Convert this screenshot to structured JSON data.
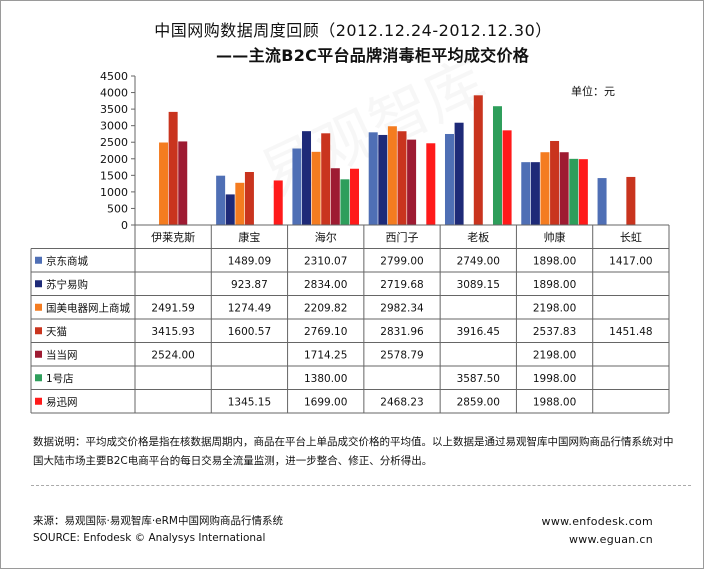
{
  "title": "中国网购数据周度回顾（2012.12.24-2012.12.30）",
  "subtitle": "——主流B2C平台品牌消毒柜平均成交价格",
  "unit": "单位：元",
  "watermark": "易观智库",
  "note": "数据说明：平均成交价格是指在核数据周期内，商品在平台上单品成交价格的平均值。以上数据是通过易观智库中国网购商品行情系统对中国大陆市场主要B2C电商平台的每日交易全流量监测，进一步整合、修正、分析得出。",
  "source_cn": "来源：易观国际·易观智库·eRM中国网购商品行情系统",
  "source_en": "SOURCE: Enfodesk © Analysys International",
  "url1": "www.enfodesk.com",
  "url2": "www.eguan.cn",
  "chart_data": {
    "type": "bar",
    "categories": [
      "伊莱克斯",
      "康宝",
      "海尔",
      "西门子",
      "老板",
      "帅康",
      "长虹"
    ],
    "ylim": [
      0,
      4500
    ],
    "yticks": [
      0,
      500,
      1000,
      1500,
      2000,
      2500,
      3000,
      3500,
      4000,
      4500
    ],
    "grid": false,
    "legend": "table-left",
    "series": [
      {
        "name": "京东商城",
        "color": "#4f6fb5",
        "values": [
          null,
          1489.09,
          2310.07,
          2799.0,
          2749.0,
          1898.0,
          1417.0
        ],
        "labels": [
          "",
          "1489.09",
          "2310.07",
          "2799.00",
          "2749.00",
          "1898.00",
          "1417.00"
        ]
      },
      {
        "name": "苏宁易购",
        "color": "#1e2a78",
        "values": [
          null,
          923.87,
          2834.0,
          2719.68,
          3089.15,
          1898.0,
          null
        ],
        "labels": [
          "",
          "923.87",
          "2834.00",
          "2719.68",
          "3089.15",
          "1898.00",
          ""
        ]
      },
      {
        "name": "国美电器网上商城",
        "color": "#f47c20",
        "values": [
          2491.59,
          1274.49,
          2209.82,
          2982.34,
          null,
          2198.0,
          null
        ],
        "labels": [
          "2491.59",
          "1274.49",
          "2209.82",
          "2982.34",
          "",
          "2198.00",
          ""
        ]
      },
      {
        "name": "天猫",
        "color": "#c9341e",
        "values": [
          3415.93,
          1600.57,
          2769.1,
          2831.96,
          3916.45,
          2537.83,
          1451.48
        ],
        "labels": [
          "3415.93",
          "1600.57",
          "2769.10",
          "2831.96",
          "3916.45",
          "2537.83",
          "1451.48"
        ]
      },
      {
        "name": "当当网",
        "color": "#9e1b32",
        "values": [
          2524.0,
          null,
          1714.25,
          2578.79,
          null,
          2198.0,
          null
        ],
        "labels": [
          "2524.00",
          "",
          "1714.25",
          "2578.79",
          "",
          "2198.00",
          ""
        ]
      },
      {
        "name": "1号店",
        "color": "#2e9e5b",
        "values": [
          null,
          null,
          1380.0,
          null,
          3587.5,
          1998.0,
          null
        ],
        "labels": [
          "",
          "",
          "1380.00",
          "",
          "3587.50",
          "1998.00",
          ""
        ]
      },
      {
        "name": "易迅网",
        "color": "#ff1a1a",
        "values": [
          null,
          1345.15,
          1699.0,
          2468.23,
          2859.0,
          1988.0,
          null
        ],
        "labels": [
          "",
          "1345.15",
          "1699.00",
          "2468.23",
          "2859.00",
          "1988.00",
          ""
        ]
      }
    ]
  }
}
